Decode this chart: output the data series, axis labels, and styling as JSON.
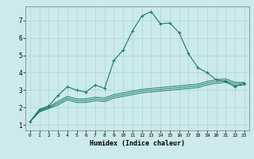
{
  "xlabel": "Humidex (Indice chaleur)",
  "bg_color": "#cce9eb",
  "line_color": "#1a7a6e",
  "grid_color": "#a8d5d8",
  "x_main": [
    0,
    1,
    2,
    3,
    4,
    5,
    6,
    7,
    8,
    9,
    10,
    11,
    12,
    13,
    14,
    15,
    16,
    17,
    18,
    19,
    20,
    21,
    22,
    23
  ],
  "y_main": [
    1.2,
    1.9,
    2.1,
    2.7,
    3.2,
    3.0,
    2.9,
    3.3,
    3.1,
    4.7,
    5.3,
    6.4,
    7.25,
    7.5,
    6.8,
    6.85,
    6.3,
    5.1,
    4.3,
    4.0,
    3.6,
    3.5,
    3.2,
    3.4
  ],
  "x_line2": [
    0,
    1,
    2,
    3,
    4,
    5,
    6,
    7,
    8,
    9,
    10,
    11,
    12,
    13,
    14,
    15,
    16,
    17,
    18,
    19,
    20,
    21,
    22,
    23
  ],
  "y_line2": [
    1.2,
    1.85,
    2.05,
    2.35,
    2.65,
    2.5,
    2.5,
    2.6,
    2.55,
    2.75,
    2.85,
    2.95,
    3.05,
    3.1,
    3.15,
    3.2,
    3.25,
    3.3,
    3.35,
    3.5,
    3.6,
    3.65,
    3.45,
    3.45
  ],
  "x_line3": [
    0,
    1,
    2,
    3,
    4,
    5,
    6,
    7,
    8,
    9,
    10,
    11,
    12,
    13,
    14,
    15,
    16,
    17,
    18,
    19,
    20,
    21,
    22,
    23
  ],
  "y_line3": [
    1.2,
    1.8,
    2.0,
    2.25,
    2.55,
    2.4,
    2.4,
    2.5,
    2.45,
    2.65,
    2.75,
    2.85,
    2.95,
    3.0,
    3.05,
    3.1,
    3.15,
    3.2,
    3.25,
    3.4,
    3.5,
    3.55,
    3.35,
    3.38
  ],
  "x_line4": [
    0,
    1,
    2,
    3,
    4,
    5,
    6,
    7,
    8,
    9,
    10,
    11,
    12,
    13,
    14,
    15,
    16,
    17,
    18,
    19,
    20,
    21,
    22,
    23
  ],
  "y_line4": [
    1.2,
    1.75,
    1.95,
    2.15,
    2.45,
    2.3,
    2.3,
    2.4,
    2.35,
    2.55,
    2.65,
    2.75,
    2.85,
    2.9,
    2.95,
    3.0,
    3.05,
    3.1,
    3.15,
    3.3,
    3.4,
    3.45,
    3.25,
    3.3
  ],
  "ylim": [
    0.7,
    7.8
  ],
  "xlim": [
    -0.5,
    23.5
  ],
  "yticks": [
    1,
    2,
    3,
    4,
    5,
    6,
    7
  ],
  "xticks": [
    0,
    1,
    2,
    3,
    4,
    5,
    6,
    7,
    8,
    9,
    10,
    11,
    12,
    13,
    14,
    15,
    16,
    17,
    18,
    19,
    20,
    21,
    22,
    23
  ]
}
